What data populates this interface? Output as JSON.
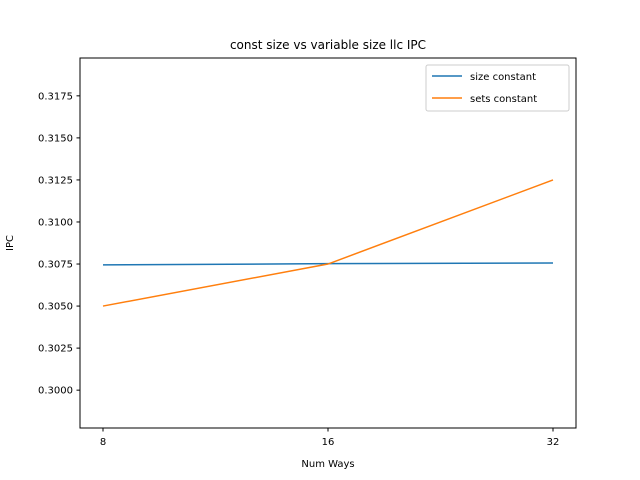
{
  "chart_data": {
    "type": "line",
    "title": "const size vs variable size llc IPC",
    "xlabel": "Num Ways",
    "ylabel": "IPC",
    "x": [
      8,
      16,
      32
    ],
    "x_ticks": [
      "8",
      "16",
      "32"
    ],
    "y_ticks": [
      "0.3000",
      "0.3025",
      "0.3050",
      "0.3075",
      "0.3100",
      "0.3125",
      "0.3150",
      "0.3175"
    ],
    "ylim": [
      0.29775,
      0.31975
    ],
    "series": [
      {
        "name": "size constant",
        "values": [
          0.30745,
          0.30752,
          0.30756
        ],
        "color": "#1f77b4"
      },
      {
        "name": "sets constant",
        "values": [
          0.305,
          0.3075,
          0.3125
        ],
        "color": "#ff7f0e"
      }
    ],
    "legend_position": "top-right",
    "grid": false
  }
}
